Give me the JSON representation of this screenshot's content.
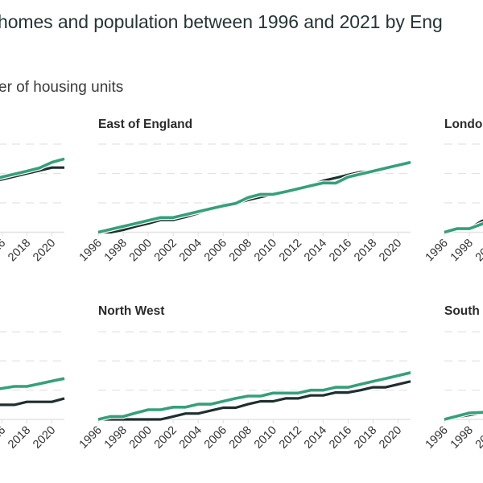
{
  "title": "homes and population between 1996 and 2021 by Eng",
  "subtitle": "er of housing units",
  "colors": {
    "series_a": "#1f2e2e",
    "series_b": "#35a07a",
    "grid": "#e3e3e3",
    "text": "#333333"
  },
  "chart_data": {
    "type": "line",
    "small_multiples": true,
    "x_ticks": [
      "1996",
      "1998",
      "2000",
      "2002",
      "2004",
      "2006",
      "2008",
      "2010",
      "2012",
      "2014",
      "2016",
      "2018",
      "2020"
    ],
    "xlim": [
      1996,
      2021
    ],
    "ylim": [
      0,
      3
    ],
    "grid": "horizontal dashed",
    "panels": [
      {
        "title": "",
        "x": [
          2015,
          2016,
          2017,
          2018,
          2019,
          2020,
          2021
        ],
        "series": [
          {
            "color": "#1f2e2e",
            "values": [
              1.7,
              1.8,
              1.9,
              2.0,
              2.1,
              2.2,
              2.2
            ]
          },
          {
            "color": "#35a07a",
            "values": [
              1.75,
              1.88,
              1.98,
              2.08,
              2.19,
              2.38,
              2.5
            ]
          }
        ]
      },
      {
        "title": "East of England",
        "x": [
          1996,
          1997,
          1998,
          1999,
          2000,
          2001,
          2002,
          2003,
          2004,
          2005,
          2006,
          2007,
          2008,
          2009,
          2010,
          2011,
          2012,
          2013,
          2014,
          2015,
          2016,
          2017,
          2018,
          2019,
          2020,
          2021
        ],
        "series": [
          {
            "color": "#1f2e2e",
            "values": [
              0,
              0,
              0.08,
              0.2,
              0.3,
              0.42,
              0.42,
              0.52,
              0.65,
              0.8,
              0.9,
              0.98,
              1.1,
              1.2,
              1.29,
              1.38,
              1.48,
              1.58,
              1.75,
              1.85,
              1.95,
              2.05,
              2.08,
              2.18,
              2.28,
              2.38
            ]
          },
          {
            "color": "#35a07a",
            "values": [
              0,
              0.1,
              0.2,
              0.3,
              0.4,
              0.5,
              0.5,
              0.6,
              0.7,
              0.8,
              0.9,
              0.98,
              1.18,
              1.29,
              1.29,
              1.38,
              1.48,
              1.58,
              1.68,
              1.67,
              1.88,
              1.98,
              2.08,
              2.18,
              2.28,
              2.38
            ]
          }
        ]
      },
      {
        "title": "Londo",
        "x": [
          1996,
          1997,
          1998,
          1999,
          2000
        ],
        "series": [
          {
            "color": "#1f2e2e",
            "values": [
              0,
              0.1,
              0.12,
              0.38,
              0.5
            ]
          },
          {
            "color": "#35a07a",
            "values": [
              0,
              0.12,
              0.12,
              0.28,
              0.4
            ]
          }
        ]
      },
      {
        "title": "",
        "x": [
          2015,
          2016,
          2017,
          2018,
          2019,
          2020,
          2021
        ],
        "series": [
          {
            "color": "#1f2e2e",
            "values": [
              0.5,
              0.5,
              0.5,
              0.6,
              0.6,
              0.6,
              0.72
            ]
          },
          {
            "color": "#35a07a",
            "values": [
              1.0,
              1.06,
              1.13,
              1.13,
              1.22,
              1.31,
              1.4
            ]
          }
        ]
      },
      {
        "title": "North West",
        "x": [
          1996,
          1997,
          1998,
          1999,
          2000,
          2001,
          2002,
          2003,
          2004,
          2005,
          2006,
          2007,
          2008,
          2009,
          2010,
          2011,
          2012,
          2013,
          2014,
          2015,
          2016,
          2017,
          2018,
          2019,
          2020,
          2021
        ],
        "series": [
          {
            "color": "#1f2e2e",
            "values": [
              0,
              0,
              0,
              0,
              0,
              0,
              0.1,
              0.2,
              0.2,
              0.3,
              0.4,
              0.4,
              0.52,
              0.62,
              0.62,
              0.72,
              0.72,
              0.82,
              0.82,
              0.92,
              0.92,
              1.0,
              1.1,
              1.1,
              1.2,
              1.3
            ]
          },
          {
            "color": "#35a07a",
            "values": [
              0,
              0.1,
              0.1,
              0.22,
              0.33,
              0.33,
              0.42,
              0.42,
              0.52,
              0.52,
              0.62,
              0.72,
              0.8,
              0.8,
              0.9,
              0.9,
              0.9,
              1.0,
              1.0,
              1.1,
              1.1,
              1.2,
              1.3,
              1.4,
              1.5,
              1.6
            ]
          }
        ]
      },
      {
        "title": "South",
        "x": [
          1996,
          1997,
          1998,
          1999,
          2000
        ],
        "series": [
          {
            "color": "#1f2e2e",
            "values": [
              0,
              0.08,
              0.15,
              0.22,
              0.3
            ]
          },
          {
            "color": "#35a07a",
            "values": [
              0,
              0.11,
              0.22,
              0.24,
              0.3
            ]
          }
        ]
      }
    ]
  }
}
